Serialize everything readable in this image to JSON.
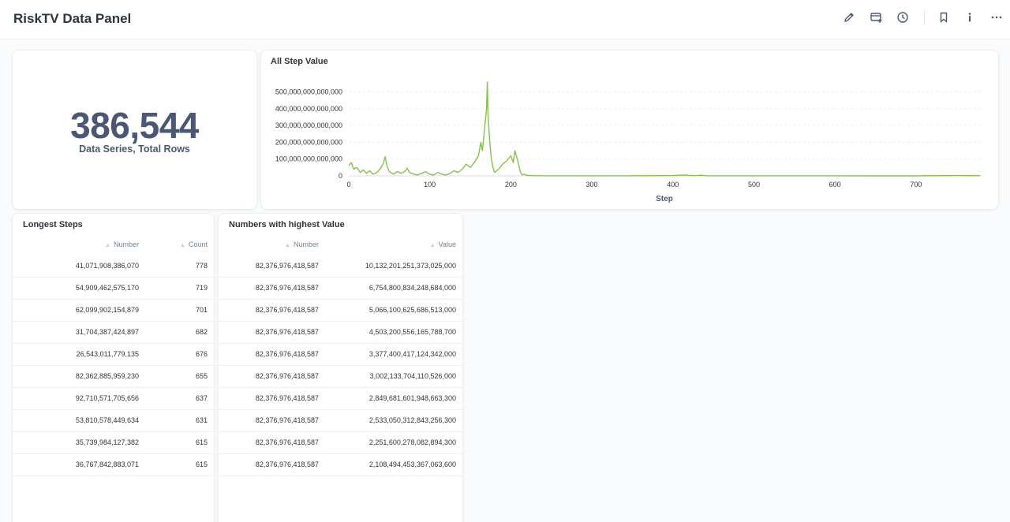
{
  "header": {
    "title": "RiskTV Data Panel",
    "icons": [
      "pencil-icon",
      "add-card-icon",
      "clock-icon",
      "bookmark-icon",
      "info-icon",
      "more-icon"
    ]
  },
  "scalar_card": {
    "value": "386,544",
    "label": "Data Series, Total Rows"
  },
  "chart_card": {
    "title": "All Step Value"
  },
  "chart_data": {
    "type": "line",
    "xlabel": "Step",
    "ylabel": "",
    "xlim": [
      0,
      780
    ],
    "ylim": [
      0,
      550000000000000
    ],
    "x_ticks": [
      "0",
      "100",
      "200",
      "300",
      "400",
      "500",
      "600",
      "700"
    ],
    "y_ticks": [
      "0",
      "100,000,000,000,000",
      "200,000,000,000,000",
      "300,000,000,000,000",
      "400,000,000,000,000",
      "500,000,000,000,000"
    ],
    "grid": true,
    "series": [
      {
        "color": "#88bf4d",
        "x": [
          0,
          3,
          6,
          10,
          14,
          18,
          22,
          26,
          30,
          35,
          40,
          43,
          45,
          47,
          50,
          55,
          60,
          65,
          70,
          72,
          75,
          80,
          85,
          90,
          95,
          100,
          105,
          110,
          115,
          120,
          125,
          130,
          135,
          140,
          145,
          150,
          155,
          160,
          163,
          165,
          168,
          170,
          171,
          172,
          174,
          176,
          178,
          180,
          185,
          190,
          195,
          200,
          203,
          205,
          208,
          210,
          212,
          214,
          216,
          220,
          225,
          230,
          250,
          300,
          350,
          400,
          415,
          420,
          430,
          435,
          440,
          450,
          500,
          550,
          600,
          650,
          700,
          750,
          779
        ],
        "y": [
          60000000000000,
          80000000000000,
          40000000000000,
          50000000000000,
          20000000000000,
          35000000000000,
          15000000000000,
          30000000000000,
          10000000000000,
          20000000000000,
          50000000000000,
          80000000000000,
          115000000000000,
          60000000000000,
          25000000000000,
          10000000000000,
          25000000000000,
          15000000000000,
          30000000000000,
          45000000000000,
          20000000000000,
          10000000000000,
          5000000000000,
          15000000000000,
          25000000000000,
          10000000000000,
          5000000000000,
          20000000000000,
          10000000000000,
          5000000000000,
          15000000000000,
          30000000000000,
          20000000000000,
          40000000000000,
          70000000000000,
          50000000000000,
          80000000000000,
          120000000000000,
          200000000000000,
          150000000000000,
          300000000000000,
          400000000000000,
          560000000000000,
          350000000000000,
          200000000000000,
          100000000000000,
          50000000000000,
          20000000000000,
          40000000000000,
          70000000000000,
          90000000000000,
          120000000000000,
          80000000000000,
          150000000000000,
          100000000000000,
          60000000000000,
          20000000000000,
          5000000000000,
          10000000000000,
          3000000000000,
          2000000000000,
          1000000000000,
          500000000000,
          500000000000,
          500000000000,
          2000000000000,
          5000000000000,
          3000000000000,
          2000000000000,
          4000000000000,
          1000000000000,
          500000000000,
          500000000000,
          300000000000,
          300000000000,
          200000000000,
          200000000000,
          2000000000000,
          1000000000000
        ]
      }
    ]
  },
  "longest_steps": {
    "title": "Longest Steps",
    "columns": [
      "Number",
      "Count"
    ],
    "rows": [
      [
        "41,071,908,386,070",
        "778"
      ],
      [
        "54,909,462,575,170",
        "719"
      ],
      [
        "62,099,902,154,879",
        "701"
      ],
      [
        "31,704,387,424,897",
        "682"
      ],
      [
        "26,543,011,779,135",
        "676"
      ],
      [
        "82,362,885,959,230",
        "655"
      ],
      [
        "92,710,571,705,656",
        "637"
      ],
      [
        "53,810,578,449,634",
        "631"
      ],
      [
        "35,739,984,127,382",
        "615"
      ],
      [
        "36,767,842,883,071",
        "615"
      ]
    ]
  },
  "highest_value": {
    "title": "Numbers with highest Value",
    "columns": [
      "Number",
      "Value"
    ],
    "rows": [
      [
        "82,376,976,418,587",
        "10,132,201,251,373,025,000"
      ],
      [
        "82,376,976,418,587",
        "6,754,800,834,248,684,000"
      ],
      [
        "82,376,976,418,587",
        "5,066,100,625,686,513,000"
      ],
      [
        "82,376,976,418,587",
        "4,503,200,556,165,788,700"
      ],
      [
        "82,376,976,418,587",
        "3,377,400,417,124,342,000"
      ],
      [
        "82,376,976,418,587",
        "3,002,133,704,110,526,000"
      ],
      [
        "82,376,976,418,587",
        "2,849,681,601,948,663,300"
      ],
      [
        "82,376,976,418,587",
        "2,533,050,312,843,256,300"
      ],
      [
        "82,376,976,418,587",
        "2,251,600,278,082,894,300"
      ],
      [
        "82,376,976,418,587",
        "2,108,494,453,367,063,600"
      ]
    ]
  }
}
